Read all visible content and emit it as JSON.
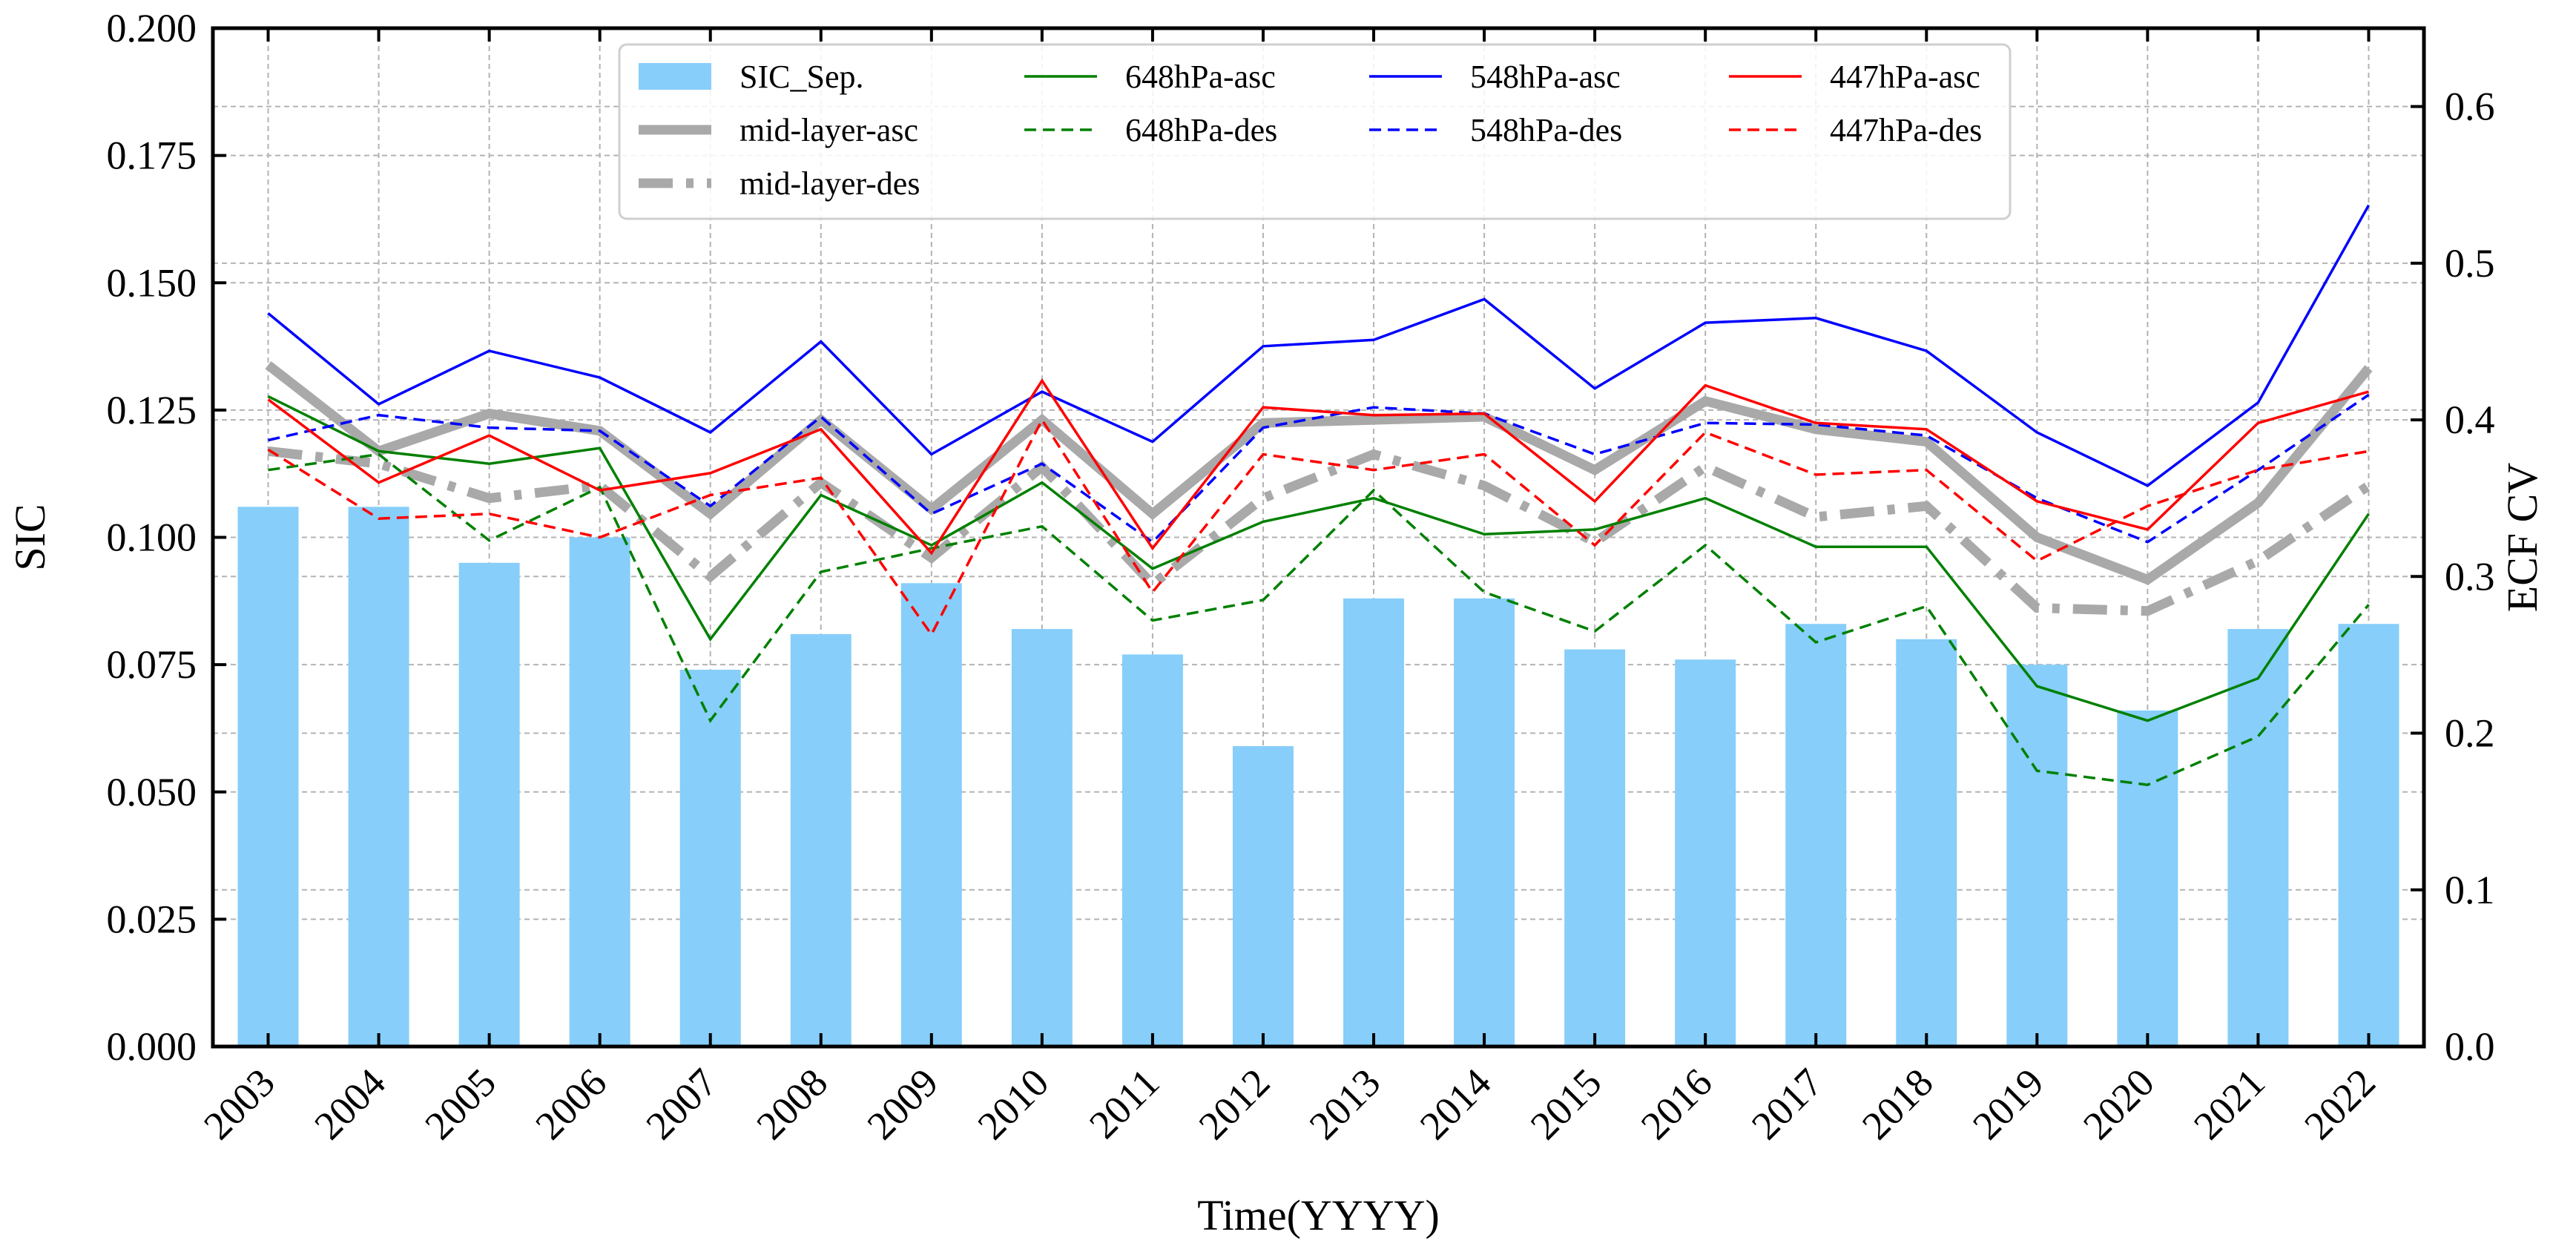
{
  "chart_data": {
    "type": "bar+line",
    "categories": [
      "2003",
      "2004",
      "2005",
      "2006",
      "2007",
      "2008",
      "2009",
      "2010",
      "2011",
      "2012",
      "2013",
      "2014",
      "2015",
      "2016",
      "2017",
      "2018",
      "2019",
      "2020",
      "2021",
      "2022"
    ],
    "xlabel": "Time(YYYY)",
    "ylabel_left": "SIC",
    "ylabel_right": "ECF CV",
    "ylim_left": [
      0,
      0.2
    ],
    "ylim_right": [
      0,
      0.65
    ],
    "yticks_left": [
      "0.000",
      "0.025",
      "0.050",
      "0.075",
      "0.100",
      "0.125",
      "0.150",
      "0.175",
      "0.200"
    ],
    "yticks_right": [
      "0.0",
      "0.1",
      "0.2",
      "0.3",
      "0.4",
      "0.5",
      "0.6"
    ],
    "grid": true,
    "legend_position": "top-center",
    "bars": {
      "name": "SIC_Sep.",
      "color": "#87CEFA",
      "axis": "left",
      "values": [
        0.106,
        0.106,
        0.095,
        0.1,
        0.074,
        0.081,
        0.091,
        0.082,
        0.077,
        0.059,
        0.088,
        0.088,
        0.078,
        0.076,
        0.083,
        0.08,
        0.075,
        0.066,
        0.082,
        0.083
      ]
    },
    "series": [
      {
        "name": "mid-layer-asc",
        "color": "#A9A9A9",
        "style": "solid-thick",
        "axis": "right",
        "values": [
          0.435,
          0.38,
          0.404,
          0.393,
          0.34,
          0.4,
          0.343,
          0.4,
          0.34,
          0.398,
          0.4,
          0.402,
          0.368,
          0.412,
          0.394,
          0.386,
          0.325,
          0.298,
          0.347,
          0.433
        ]
      },
      {
        "name": "mid-layer-des",
        "color": "#A9A9A9",
        "style": "dashdot-thick",
        "axis": "right",
        "values": [
          0.38,
          0.372,
          0.35,
          0.358,
          0.3,
          0.36,
          0.312,
          0.37,
          0.295,
          0.35,
          0.378,
          0.358,
          0.322,
          0.37,
          0.338,
          0.345,
          0.28,
          0.278,
          0.31,
          0.358
        ]
      },
      {
        "name": "648hPa-asc",
        "color": "#008000",
        "style": "solid",
        "axis": "right",
        "values": [
          0.415,
          0.38,
          0.372,
          0.382,
          0.26,
          0.352,
          0.32,
          0.36,
          0.305,
          0.335,
          0.35,
          0.327,
          0.33,
          0.35,
          0.319,
          0.319,
          0.23,
          0.208,
          0.235,
          0.34
        ]
      },
      {
        "name": "648hPa-des",
        "color": "#008000",
        "style": "dashed",
        "axis": "right",
        "values": [
          0.368,
          0.378,
          0.323,
          0.357,
          0.208,
          0.303,
          0.318,
          0.332,
          0.272,
          0.285,
          0.355,
          0.29,
          0.265,
          0.32,
          0.258,
          0.281,
          0.176,
          0.167,
          0.198,
          0.282
        ]
      },
      {
        "name": "548hPa-asc",
        "color": "#0000FF",
        "style": "solid",
        "axis": "right",
        "values": [
          0.468,
          0.41,
          0.444,
          0.427,
          0.392,
          0.45,
          0.378,
          0.418,
          0.386,
          0.447,
          0.451,
          0.477,
          0.42,
          0.462,
          0.465,
          0.444,
          0.392,
          0.358,
          0.411,
          0.537
        ]
      },
      {
        "name": "548hPa-des",
        "color": "#0000FF",
        "style": "dashed",
        "axis": "right",
        "values": [
          0.387,
          0.403,
          0.395,
          0.393,
          0.345,
          0.402,
          0.34,
          0.372,
          0.322,
          0.395,
          0.408,
          0.404,
          0.378,
          0.398,
          0.397,
          0.39,
          0.35,
          0.322,
          0.368,
          0.416
        ]
      },
      {
        "name": "447hPa-asc",
        "color": "#FF0000",
        "style": "solid",
        "axis": "right",
        "values": [
          0.413,
          0.36,
          0.39,
          0.355,
          0.366,
          0.394,
          0.315,
          0.425,
          0.318,
          0.408,
          0.403,
          0.404,
          0.348,
          0.422,
          0.398,
          0.394,
          0.348,
          0.33,
          0.398,
          0.418
        ]
      },
      {
        "name": "447hPa-des",
        "color": "#FF0000",
        "style": "dashed",
        "axis": "right",
        "values": [
          0.381,
          0.337,
          0.34,
          0.325,
          0.352,
          0.363,
          0.263,
          0.4,
          0.29,
          0.378,
          0.368,
          0.378,
          0.32,
          0.392,
          0.365,
          0.368,
          0.31,
          0.345,
          0.368,
          0.38
        ]
      }
    ],
    "legend": [
      [
        "SIC_Sep.",
        "648hPa-asc",
        "548hPa-asc",
        "447hPa-asc"
      ],
      [
        "mid-layer-asc",
        "648hPa-des",
        "548hPa-des",
        "447hPa-des"
      ],
      [
        "mid-layer-des"
      ]
    ]
  }
}
